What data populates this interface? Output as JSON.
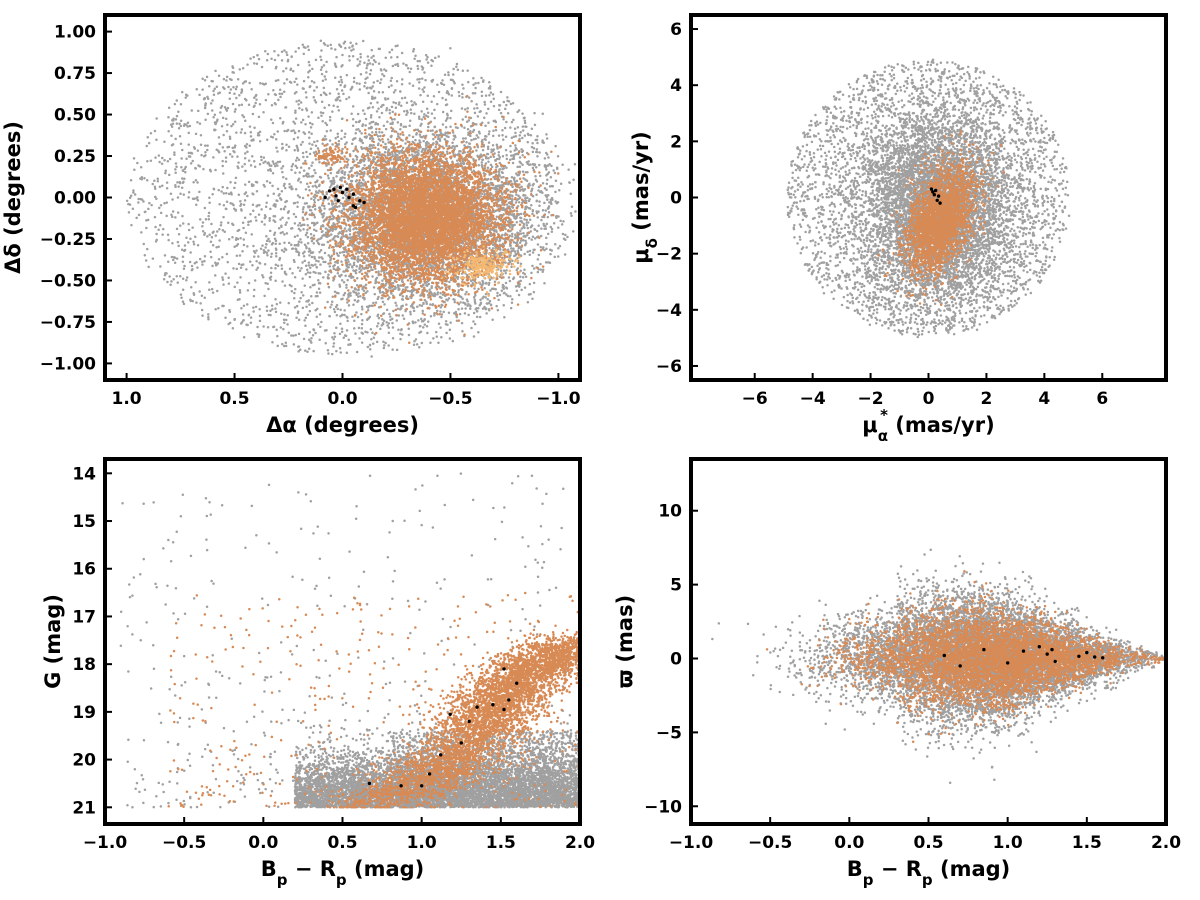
{
  "colors": {
    "field": "#a0a0a0",
    "members": "#d88a55",
    "highlight": "#f5b870",
    "special": "#000000"
  },
  "chart_data": [
    {
      "id": "sky",
      "type": "scatter",
      "xlabel_main": "Δα",
      "xlabel_sub": "",
      "xlabel_unit": " (degrees)",
      "ylabel_main": "Δδ",
      "ylabel_sub": "",
      "ylabel_unit": " (degrees)",
      "xlim": [
        1.1,
        -1.1
      ],
      "ylim": [
        -1.1,
        1.1
      ],
      "xticks": [
        1.0,
        0.5,
        0.0,
        -0.5,
        -1.0
      ],
      "xtick_labels": [
        "1.0",
        "0.5",
        "0.0",
        "−0.5",
        "−1.0"
      ],
      "yticks": [
        -1.0,
        -0.75,
        -0.5,
        -0.25,
        0.0,
        0.25,
        0.5,
        0.75,
        1.0
      ],
      "ytick_labels": [
        "−1.00",
        "−0.75",
        "−0.50",
        "−0.25",
        "0.00",
        "0.25",
        "0.50",
        "0.75",
        "1.00"
      ],
      "grid": false,
      "series": [
        {
          "role": "field",
          "color": "#a0a0a0",
          "approx_count": 8000,
          "distribution": "disk radius 1.0 centered (0,0) plus dense concentration around (-0.35,-0.15)"
        },
        {
          "role": "members",
          "color": "#d88a55",
          "approx_count": 6000,
          "distribution": "concentration centered (-0.38,-0.12) with spreads 0.18 x 0.2",
          "examples": [
            [
              -0.3,
              -0.1
            ],
            [
              -0.45,
              -0.2
            ],
            [
              -0.2,
              0.1
            ],
            [
              -0.55,
              -0.3
            ],
            [
              0.0,
              0.25
            ],
            [
              0.1,
              0.27
            ]
          ]
        },
        {
          "role": "highlight",
          "color": "#f5b870",
          "approx_count": 200,
          "distribution": "around (-0.65,-0.42)"
        },
        {
          "role": "special",
          "color": "#000000",
          "points": [
            [
              0.06,
              0.04
            ],
            [
              0.03,
              0.01
            ],
            [
              0.0,
              0.03
            ],
            [
              -0.02,
              0.05
            ],
            [
              -0.05,
              0.02
            ],
            [
              -0.08,
              -0.02
            ],
            [
              -0.05,
              -0.05
            ],
            [
              0.02,
              -0.02
            ],
            [
              0.08,
              0.0
            ],
            [
              -0.03,
              0.0
            ],
            [
              -0.06,
              -0.06
            ],
            [
              0.04,
              0.05
            ],
            [
              -0.1,
              -0.03
            ],
            [
              0.01,
              0.06
            ]
          ]
        }
      ]
    },
    {
      "id": "proper-motion",
      "type": "scatter",
      "xlabel_main": "μ",
      "xlabel_sub": "α",
      "xlabel_sup": "*",
      "xlabel_unit": "  (mas/yr)",
      "ylabel_main": "μ",
      "ylabel_sub": "δ",
      "ylabel_unit": " (mas/yr)",
      "xlim": [
        -8.2,
        8.2
      ],
      "ylim": [
        -6.5,
        6.5
      ],
      "xticks": [
        -6,
        -4,
        -2,
        0,
        2,
        4,
        6
      ],
      "xtick_labels": [
        "−6",
        "−4",
        "−2",
        "0",
        "2",
        "4",
        "6"
      ],
      "yticks": [
        -6,
        -4,
        -2,
        0,
        2,
        4,
        6
      ],
      "ytick_labels": [
        "−6",
        "−4",
        "−2",
        "0",
        "2",
        "4",
        "6"
      ],
      "grid": false,
      "series": [
        {
          "role": "field",
          "color": "#a0a0a0",
          "approx_count": 9000,
          "distribution": "disk radius 5 centered (0,0) with dense core"
        },
        {
          "role": "members",
          "color": "#d88a55",
          "approx_count": 2500,
          "distribution": "tilted ellipse centered (0.4,-0.8), spreads 0.7 x 1.1"
        },
        {
          "role": "special",
          "color": "#000000",
          "points": [
            [
              0.1,
              0.3
            ],
            [
              0.2,
              0.1
            ],
            [
              0.25,
              0.25
            ],
            [
              0.3,
              -0.1
            ],
            [
              0.4,
              -0.2
            ],
            [
              0.15,
              0.2
            ],
            [
              0.35,
              0.05
            ]
          ]
        }
      ]
    },
    {
      "id": "cmd",
      "type": "scatter",
      "xlabel_main": "B",
      "xlabel_sub": "p",
      "xlabel_mid": " − R",
      "xlabel_sub2": "p",
      "xlabel_unit": " (mag)",
      "ylabel_main": "G",
      "ylabel_sub": "",
      "ylabel_unit": " (mag)",
      "xlim": [
        -1.0,
        2.0
      ],
      "ylim": [
        13.7,
        21.35
      ],
      "y_inverted": true,
      "xticks": [
        -1.0,
        -0.5,
        0.0,
        0.5,
        1.0,
        1.5,
        2.0
      ],
      "xtick_labels": [
        "−1.0",
        "−0.5",
        "0.0",
        "0.5",
        "1.0",
        "1.5",
        "2.0"
      ],
      "yticks": [
        14,
        15,
        16,
        17,
        18,
        19,
        20,
        21
      ],
      "ytick_labels": [
        "14",
        "15",
        "16",
        "17",
        "18",
        "19",
        "20",
        "21"
      ],
      "grid": false,
      "series": [
        {
          "role": "field",
          "color": "#a0a0a0",
          "approx_count": 9000,
          "distribution": "faint-end band G 20-21, BP-RP 0.2-2.0, plus sparse brighter stars"
        },
        {
          "role": "members",
          "color": "#d88a55",
          "approx_count": 5000,
          "distribution": "sequence from (0.6,21) through (1.2,20) and (1.45,18.8) to (1.9,17.6), plus scattered blue stars"
        },
        {
          "role": "special",
          "color": "#000000",
          "points": [
            [
              0.67,
              20.5
            ],
            [
              0.87,
              20.55
            ],
            [
              1.05,
              20.3
            ],
            [
              1.12,
              19.9
            ],
            [
              1.25,
              19.65
            ],
            [
              1.3,
              19.2
            ],
            [
              1.35,
              18.9
            ],
            [
              1.45,
              18.85
            ],
            [
              1.52,
              18.95
            ],
            [
              1.55,
              18.75
            ],
            [
              1.6,
              18.4
            ],
            [
              1.52,
              18.1
            ],
            [
              1.0,
              20.55
            ],
            [
              1.18,
              19.05
            ]
          ]
        }
      ]
    },
    {
      "id": "parallax",
      "type": "scatter",
      "xlabel_main": "B",
      "xlabel_sub": "p",
      "xlabel_mid": " − R",
      "xlabel_sub2": "p",
      "xlabel_unit": " (mag)",
      "ylabel_main": "ϖ",
      "ylabel_sub": "",
      "ylabel_unit": " (mas)",
      "xlim": [
        -1.0,
        2.0
      ],
      "ylim": [
        -11.2,
        13.5
      ],
      "xticks": [
        -1.0,
        -0.5,
        0.0,
        0.5,
        1.0,
        1.5,
        2.0
      ],
      "xtick_labels": [
        "−1.0",
        "−0.5",
        "0.0",
        "0.5",
        "1.0",
        "1.5",
        "2.0"
      ],
      "yticks": [
        -10,
        -5,
        0,
        5,
        10
      ],
      "ytick_labels": [
        "−10",
        "−5",
        "0",
        "5",
        "10"
      ],
      "grid": false,
      "series": [
        {
          "role": "field",
          "color": "#a0a0a0",
          "approx_count": 9000,
          "distribution": "spread around 0 narrowing with BP-RP, wide near 0.8"
        },
        {
          "role": "members",
          "color": "#d88a55",
          "approx_count": 5000,
          "distribution": "spread around 0, sigma ~1.5 at BP-RP 0.8, narrowing to ~0.1 at 2.0"
        },
        {
          "role": "special",
          "color": "#000000",
          "points": [
            [
              0.6,
              0.2
            ],
            [
              0.7,
              -0.5
            ],
            [
              0.85,
              0.6
            ],
            [
              1.0,
              -0.3
            ],
            [
              1.1,
              0.5
            ],
            [
              1.2,
              0.8
            ],
            [
              1.25,
              0.3
            ],
            [
              1.3,
              -0.2
            ],
            [
              1.45,
              0.15
            ],
            [
              1.5,
              0.4
            ],
            [
              1.55,
              0.1
            ],
            [
              1.6,
              0.05
            ],
            [
              1.28,
              0.6
            ]
          ]
        }
      ]
    }
  ]
}
